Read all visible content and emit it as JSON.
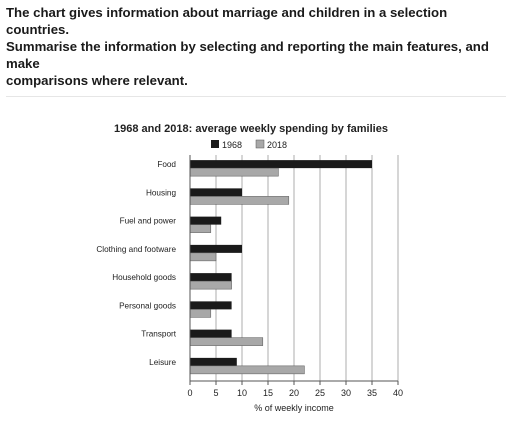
{
  "prompt": {
    "line1": "The chart gives information about marriage and children in a selection countries.",
    "line2": "Summarise the information by selecting and reporting the main features, and make",
    "line3": "comparisons where relevant."
  },
  "chart_data": {
    "type": "bar",
    "orientation": "horizontal",
    "title": "1968 and 2018: average weekly spending by families",
    "xlabel": "% of weekly income",
    "ylabel": "",
    "xlim": [
      0,
      40
    ],
    "xticks": [
      "0",
      "5",
      "10",
      "15",
      "20",
      "25",
      "30",
      "35",
      "40"
    ],
    "grid": "vertical",
    "legend_position": "top",
    "categories": [
      "Food",
      "Housing",
      "Fuel and power",
      "Clothing and footware",
      "Household goods",
      "Personal goods",
      "Transport",
      "Leisure"
    ],
    "series": [
      {
        "name": "1968",
        "color": "#1a1a1a",
        "values": [
          35,
          10,
          6,
          10,
          8,
          8,
          8,
          9
        ]
      },
      {
        "name": "2018",
        "color": "#a8a8a8",
        "values": [
          17,
          19,
          4,
          5,
          8,
          4,
          14,
          22
        ]
      }
    ]
  }
}
